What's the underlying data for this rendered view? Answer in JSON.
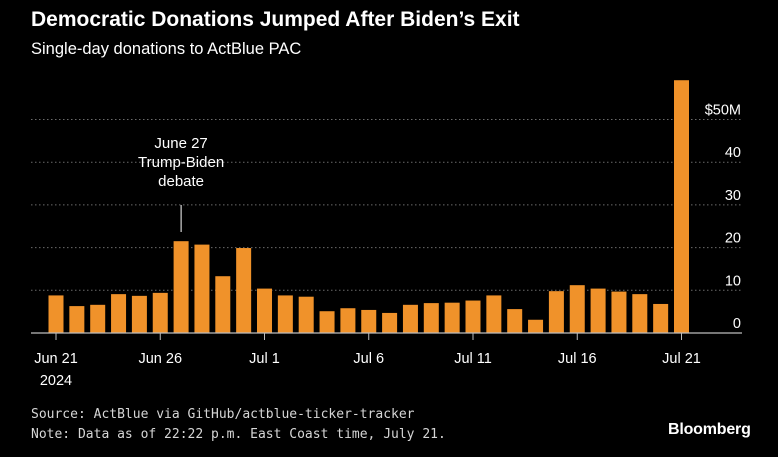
{
  "header": {
    "title": "Democratic Donations Jumped After Biden’s Exit",
    "subtitle": "Single-day donations to ActBlue PAC"
  },
  "footer": {
    "source": "Source: ActBlue via GitHub/actblue-ticker-tracker",
    "note": "Note: Data as of 22:22 p.m. East Coast time, July 21.",
    "brand": "Bloomberg"
  },
  "colors": {
    "background": "#000000",
    "bar": "#f0922a",
    "grid": "#6b6b6b",
    "axis": "#bdbdbd",
    "text": "#ffffff"
  },
  "chart_data": {
    "type": "bar",
    "title": "Democratic Donations Jumped After Biden’s Exit",
    "subtitle": "Single-day donations to ActBlue PAC",
    "xlabel": "",
    "ylabel": "",
    "ylim": [
      0,
      50
    ],
    "y_ticks": [
      0,
      10,
      20,
      30,
      40,
      50
    ],
    "y_tick_labels": [
      "0",
      "10",
      "20",
      "30",
      "40",
      "$50M"
    ],
    "grid": true,
    "y_axis_side": "right",
    "x_ticks": [
      {
        "date": "2024-06-21",
        "label": "Jun 21",
        "sublabel": "2024"
      },
      {
        "date": "2024-06-26",
        "label": "Jun 26",
        "sublabel": ""
      },
      {
        "date": "2024-07-01",
        "label": "Jul 1",
        "sublabel": ""
      },
      {
        "date": "2024-07-06",
        "label": "Jul 6",
        "sublabel": ""
      },
      {
        "date": "2024-07-11",
        "label": "Jul 11",
        "sublabel": ""
      },
      {
        "date": "2024-07-16",
        "label": "Jul 16",
        "sublabel": ""
      },
      {
        "date": "2024-07-21",
        "label": "Jul 21",
        "sublabel": ""
      }
    ],
    "categories": [
      "2024-06-21",
      "2024-06-22",
      "2024-06-23",
      "2024-06-24",
      "2024-06-25",
      "2024-06-26",
      "2024-06-27",
      "2024-06-28",
      "2024-06-29",
      "2024-06-30",
      "2024-07-01",
      "2024-07-02",
      "2024-07-03",
      "2024-07-04",
      "2024-07-05",
      "2024-07-06",
      "2024-07-07",
      "2024-07-08",
      "2024-07-09",
      "2024-07-10",
      "2024-07-11",
      "2024-07-12",
      "2024-07-13",
      "2024-07-14",
      "2024-07-15",
      "2024-07-16",
      "2024-07-17",
      "2024-07-18",
      "2024-07-19",
      "2024-07-20",
      "2024-07-21"
    ],
    "values": [
      8.8,
      6.3,
      6.6,
      9.1,
      8.7,
      9.4,
      21.5,
      20.7,
      13.3,
      19.9,
      10.4,
      8.8,
      8.5,
      5.1,
      5.8,
      5.4,
      4.7,
      6.6,
      7.0,
      7.1,
      7.6,
      8.8,
      5.6,
      3.1,
      9.8,
      11.2,
      10.4,
      9.7,
      9.1,
      6.8,
      59.2
    ],
    "annotations": [
      {
        "date": "2024-06-27",
        "lines": [
          "June 27",
          "Trump-Biden",
          "debate"
        ]
      }
    ]
  }
}
